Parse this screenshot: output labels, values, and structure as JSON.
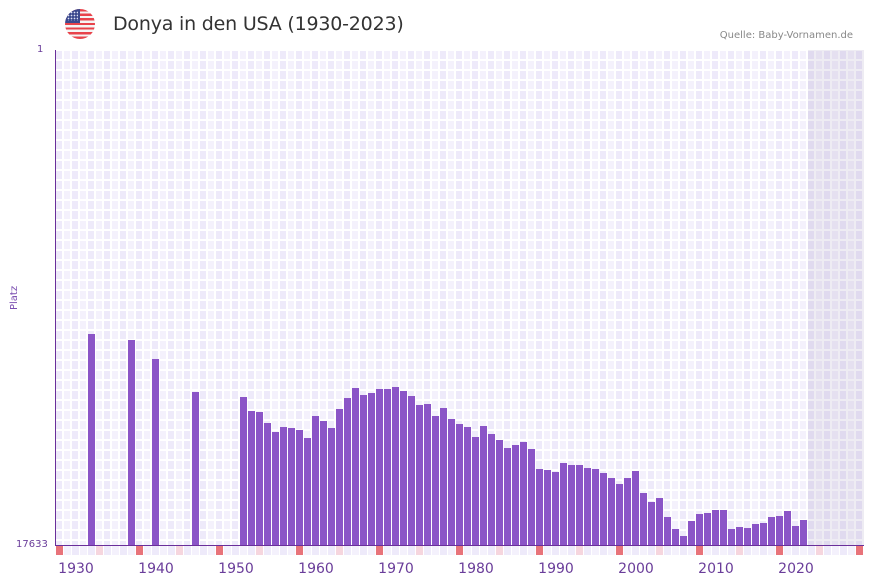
{
  "header": {
    "title": "Donya in den USA (1930-2023)",
    "source": "Quelle: Baby-Vornamen.de",
    "flag_icon": "usa-flag-icon"
  },
  "colors": {
    "bar": "#8b55c7",
    "axis": "#6a2f9a",
    "grid_a": "#eeeafa",
    "grid_b": "#f4f1fc",
    "decade_mark": "#e8737a",
    "half_decade_mark": "#f6d6de",
    "future_shade": "#e4e0ee"
  },
  "chart_data": {
    "type": "bar",
    "title": "Donya in den USA (1930-2023)",
    "xlabel": "",
    "ylabel": "Platz",
    "y_axis_inverted": true,
    "ylim": [
      1,
      17633
    ],
    "y_tick_labels": [
      "1",
      "17633"
    ],
    "x_range": [
      1928,
      2028
    ],
    "x_tick_labels": [
      "1930",
      "1940",
      "1950",
      "1960",
      "1970",
      "1980",
      "1990",
      "2000",
      "2010",
      "2020"
    ],
    "grid": true,
    "shaded_future_from": 2022,
    "x": [
      1932,
      1937,
      1940,
      1945,
      1951,
      1952,
      1953,
      1954,
      1955,
      1956,
      1957,
      1958,
      1959,
      1960,
      1961,
      1962,
      1963,
      1964,
      1965,
      1966,
      1967,
      1968,
      1969,
      1970,
      1971,
      1972,
      1973,
      1974,
      1975,
      1976,
      1977,
      1978,
      1979,
      1980,
      1981,
      1982,
      1983,
      1984,
      1985,
      1986,
      1987,
      1988,
      1989,
      1990,
      1991,
      1992,
      1993,
      1994,
      1995,
      1996,
      1997,
      1998,
      1999,
      2000,
      2001,
      2002,
      2003,
      2004,
      2005,
      2006,
      2007,
      2008,
      2009,
      2010,
      2011,
      2012,
      2013,
      2014,
      2015,
      2016,
      2017,
      2018,
      2019,
      2020,
      2021
    ],
    "values": [
      10117,
      10331,
      11008,
      12183,
      12362,
      12861,
      12896,
      13288,
      13609,
      13431,
      13467,
      13538,
      13823,
      13039,
      13217,
      13467,
      12790,
      12398,
      12041,
      12291,
      12220,
      12077,
      12077,
      12006,
      12148,
      12327,
      12647,
      12612,
      13039,
      12754,
      13146,
      13324,
      13431,
      13787,
      13395,
      13680,
      13894,
      14179,
      14072,
      13965,
      14215,
      14928,
      14963,
      15035,
      14714,
      14785,
      14785,
      14892,
      14928,
      15070,
      15248,
      15462,
      15248,
      14999,
      15783,
      16103,
      15961,
      16638,
      17066,
      17315,
      16780,
      16531,
      16496,
      16389,
      16389,
      17066,
      16995,
      17030,
      16888,
      16852,
      16638,
      16602,
      16424,
      16959,
      16745
    ]
  }
}
